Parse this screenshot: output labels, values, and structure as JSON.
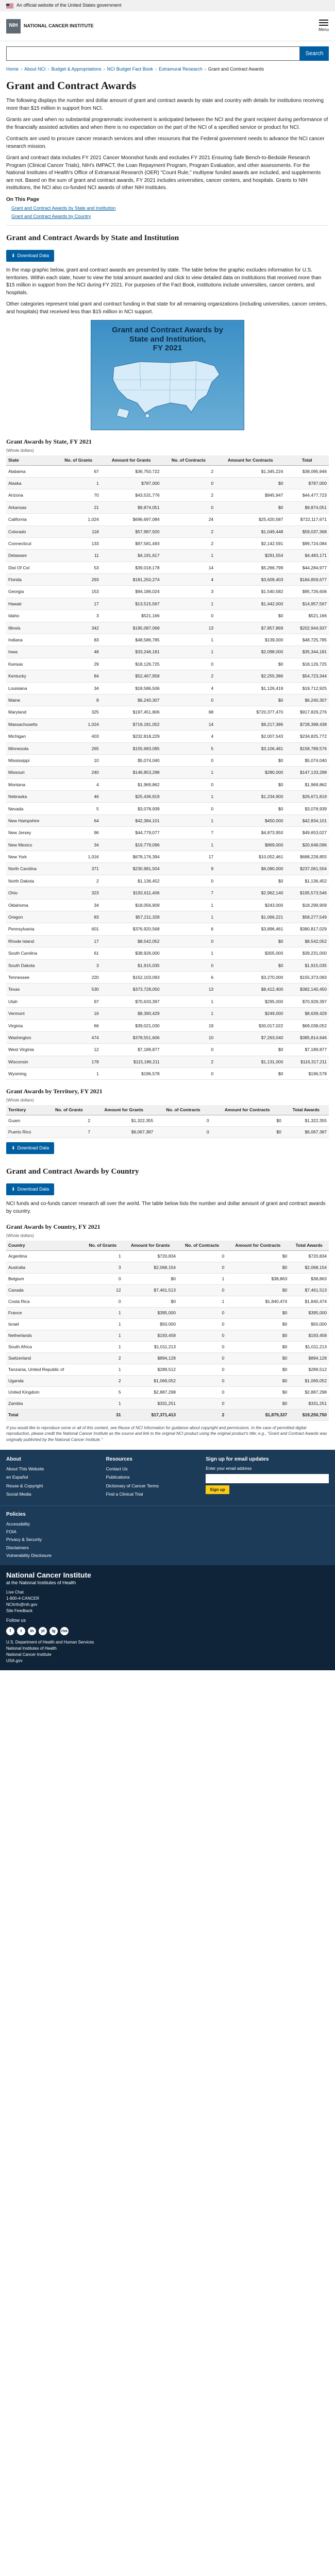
{
  "gov_banner": {
    "text": "An official website of the United States government"
  },
  "masthead": {
    "logo_line1": "NATIONAL CANCER INSTITUTE",
    "logo_line2": "NIH",
    "menu_label": "Menu"
  },
  "search": {
    "placeholder": "",
    "button_label": "Search"
  },
  "breadcrumb": [
    "Home",
    "About NCI",
    "Budget & Appropriations",
    "NCI Budget Fact Book",
    "Extramural Research",
    "Grant and Contract Awards"
  ],
  "page": {
    "title": "Grant and Contract Awards",
    "intro_paragraphs": [
      "The following displays the number and dollar amount of grant and contract awards by state and country with details for institutions receiving more than $15 million in support from NCI.",
      "Grants are used when no substantial programmatic involvement is anticipated between the NCI and the grant recipient during performance of the financially assisted activities and when there is no expectation on the part of the NCI of a specified service or product for NCI.",
      "Contracts are used to procure cancer research services and other resources that the Federal government needs to advance the NCI cancer research mission.",
      "Grant and contract data includes FY 2021 Cancer Moonshot funds and excludes FY 2021 Ensuring Safe Bench-to-Bedside Research Program (Clinical Cancer Trials), NIH's IMPACT, the Loan Repayment Program, Program Evaluation, and other assessments. For the National Institutes of Health's Office of Extramural Research (OER) \"Count Rule,\" multiyear funded awards are included, and supplements are not. Based on the sum of grant and contract awards, FY 2021 includes universities, cancer centers, and hospitals. Grants to NIH institutions, the NCI also co-funded NCI awards of other NIH Institutes."
    ],
    "on_this_page_title": "On This Page",
    "on_this_page_links": [
      "Grant and Contract Awards by State and Institution",
      "Grant and Contract Awards by Country"
    ],
    "section1_title": "Grant and Contract Awards by State and Institution",
    "download_label": "Download Data",
    "section1_text": "In the map graphic below, grant and contract awards are presented by state. The table below the graphic excludes information for U.S. territories. Within each state, hover to view the total amount awarded and click to view detailed data on institutions that received more than $15 million in support from the NCI during FY 2021. For purposes of the Fact Book, institutions include universities, cancer centers, and hospitals.",
    "section1_text2": "Other categories represent total grant and contract funding in that state for all remaining organizations (including universities, cancer centers, and hospitals) that received less than $15 million in NCI support.",
    "map_title_line1": "Grant and Contract Awards by",
    "map_title_line2": "State and Institution,",
    "map_title_line3": "FY 2021"
  },
  "state_table": {
    "title": "Grant Awards by State, FY 2021",
    "note": "(Whole dollars)",
    "headers": [
      "State",
      "No. of Grants",
      "Amount for Grants",
      "No. of Contracts",
      "Amount for Contracts",
      "Total"
    ],
    "rows": [
      [
        "Alabama",
        "67",
        "$36,750,722",
        "2",
        "$1,345,224",
        "$38,095,946"
      ],
      [
        "Alaska",
        "1",
        "$787,000",
        "0",
        "$0",
        "$787,000"
      ],
      [
        "Arizona",
        "70",
        "$43,531,776",
        "2",
        "$945,947",
        "$44,477,723"
      ],
      [
        "Arkansas",
        "21",
        "$9,874,051",
        "0",
        "$0",
        "$9,874,051"
      ],
      [
        "California",
        "1,024",
        "$696,697,084",
        "24",
        "$25,420,587",
        "$722,117,671"
      ],
      [
        "Colorado",
        "118",
        "$57,987,920",
        "2",
        "$1,049,448",
        "$59,037,368"
      ],
      [
        "Connecticut",
        "133",
        "$97,581,493",
        "2",
        "$2,142,591",
        "$99,724,084"
      ],
      [
        "Delaware",
        "11",
        "$4,191,617",
        "1",
        "$291,554",
        "$4,483,171"
      ],
      [
        "Dist Of Col",
        "53",
        "$39,018,178",
        "14",
        "$5,266,799",
        "$44,284,977"
      ],
      [
        "Florida",
        "293",
        "$181,250,274",
        "4",
        "$3,609,403",
        "$184,859,677"
      ],
      [
        "Georgia",
        "153",
        "$94,186,024",
        "3",
        "$1,540,582",
        "$95,726,606"
      ],
      [
        "Hawaii",
        "17",
        "$13,515,567",
        "1",
        "$1,442,000",
        "$14,957,567"
      ],
      [
        "Idaho",
        "3",
        "$521,166",
        "0",
        "$0",
        "$521,166"
      ],
      [
        "Illinois",
        "342",
        "$195,087,068",
        "13",
        "$7,857,869",
        "$202,944,937"
      ],
      [
        "Indiana",
        "83",
        "$48,586,785",
        "1",
        "$139,000",
        "$48,725,785"
      ],
      [
        "Iowa",
        "48",
        "$33,246,181",
        "1",
        "$2,098,000",
        "$35,344,181"
      ],
      [
        "Kansas",
        "29",
        "$18,126,725",
        "0",
        "$0",
        "$18,126,725"
      ],
      [
        "Kentucky",
        "84",
        "$52,467,958",
        "2",
        "$2,255,386",
        "$54,723,344"
      ],
      [
        "Louisiana",
        "34",
        "$18,586,506",
        "4",
        "$1,126,419",
        "$19,712,925"
      ],
      [
        "Maine",
        "8",
        "$6,240,307",
        "0",
        "$0",
        "$6,240,307"
      ],
      [
        "Maryland",
        "325",
        "$197,451,806",
        "68",
        "$720,377,470",
        "$917,829,276"
      ],
      [
        "Massachusetts",
        "1,024",
        "$719,181,052",
        "14",
        "$9,217,386",
        "$728,398,438"
      ],
      [
        "Michigan",
        "403",
        "$232,818,229",
        "4",
        "$2,007,543",
        "$234,825,772"
      ],
      [
        "Minnesota",
        "265",
        "$155,683,095",
        "5",
        "$3,106,481",
        "$158,789,576"
      ],
      [
        "Mississippi",
        "10",
        "$5,074,040",
        "0",
        "$0",
        "$5,074,040"
      ],
      [
        "Missouri",
        "240",
        "$146,853,298",
        "1",
        "$280,000",
        "$147,133,298"
      ],
      [
        "Montana",
        "4",
        "$1,969,862",
        "0",
        "$0",
        "$1,969,862"
      ],
      [
        "Nebraska",
        "46",
        "$25,436,919",
        "1",
        "$1,234,900",
        "$26,671,819"
      ],
      [
        "Nevada",
        "5",
        "$3,078,939",
        "0",
        "$0",
        "$3,078,939"
      ],
      [
        "New Hampshire",
        "64",
        "$42,384,101",
        "1",
        "$450,000",
        "$42,834,101"
      ],
      [
        "New Jersey",
        "96",
        "$44,779,077",
        "7",
        "$4,873,950",
        "$49,653,027"
      ],
      [
        "New Mexico",
        "34",
        "$19,779,096",
        "1",
        "$869,000",
        "$20,648,096"
      ],
      [
        "New York",
        "1,016",
        "$678,176,394",
        "17",
        "$10,052,461",
        "$688,228,855"
      ],
      [
        "North Carolina",
        "371",
        "$230,981,504",
        "9",
        "$6,080,000",
        "$237,061,504"
      ],
      [
        "North Dakota",
        "2",
        "$1,136,452",
        "0",
        "$0",
        "$1,136,452"
      ],
      [
        "Ohio",
        "323",
        "$192,611,406",
        "7",
        "$2,962,140",
        "$195,573,546"
      ],
      [
        "Oklahoma",
        "34",
        "$18,056,909",
        "1",
        "$243,000",
        "$18,299,909"
      ],
      [
        "Oregon",
        "83",
        "$57,211,328",
        "1",
        "$1,066,221",
        "$58,277,549"
      ],
      [
        "Pennsylvania",
        "601",
        "$376,920,568",
        "6",
        "$3,896,461",
        "$380,817,029"
      ],
      [
        "Rhode Island",
        "17",
        "$8,542,052",
        "0",
        "$0",
        "$8,542,052"
      ],
      [
        "South Carolina",
        "61",
        "$38,926,000",
        "1",
        "$305,000",
        "$39,231,000"
      ],
      [
        "South Dakota",
        "3",
        "$1,915,035",
        "0",
        "$0",
        "$1,915,035"
      ],
      [
        "Tennessee",
        "220",
        "$152,103,093",
        "6",
        "$3,270,000",
        "$155,373,093"
      ],
      [
        "Texas",
        "530",
        "$373,728,050",
        "13",
        "$8,412,400",
        "$382,140,450"
      ],
      [
        "Utah",
        "97",
        "$70,633,397",
        "1",
        "$295,000",
        "$70,928,397"
      ],
      [
        "Vermont",
        "16",
        "$8,390,429",
        "1",
        "$249,000",
        "$8,639,429"
      ],
      [
        "Virginia",
        "66",
        "$39,021,030",
        "19",
        "$30,017,022",
        "$69,038,052"
      ],
      [
        "Washington",
        "474",
        "$378,551,606",
        "10",
        "$7,263,040",
        "$385,814,646"
      ],
      [
        "West Virginia",
        "12",
        "$7,189,877",
        "0",
        "$0",
        "$7,189,877"
      ],
      [
        "Wisconsin",
        "178",
        "$115,186,211",
        "2",
        "$1,131,000",
        "$116,317,211"
      ],
      [
        "Wyoming",
        "1",
        "$196,578",
        "0",
        "$0",
        "$196,578"
      ]
    ]
  },
  "territory_table": {
    "title": "Grant Awards by Territory, FY 2021",
    "note": "(Whole dollars)",
    "headers": [
      "Territory",
      "No. of Grants",
      "Amount for Grants",
      "No. of Contracts",
      "Amount for Contracts",
      "Total Awards"
    ],
    "rows": [
      [
        "Guam",
        "2",
        "$1,322,355",
        "0",
        "$0",
        "$1,322,355"
      ],
      [
        "Puerto Rico",
        "7",
        "$6,067,387",
        "0",
        "$0",
        "$6,067,387"
      ]
    ]
  },
  "country_section": {
    "title": "Grant and Contract Awards by Country",
    "download_label": "Download Data",
    "text": "NCI funds and co-funds cancer research all over the world. The table below lists the number and dollar amount of grant and contract awards by country.",
    "table_title": "Grant Awards by Country, FY 2021",
    "note": "(Whole dollars)",
    "headers": [
      "Country",
      "No. of Grants",
      "Amount for Grants",
      "No. of Contracts",
      "Amount for Contracts",
      "Total Awards"
    ],
    "rows": [
      [
        "Argentina",
        "1",
        "$720,834",
        "0",
        "$0",
        "$720,834"
      ],
      [
        "Australia",
        "3",
        "$2,068,154",
        "0",
        "$0",
        "$2,068,154"
      ],
      [
        "Belgium",
        "0",
        "$0",
        "1",
        "$38,863",
        "$38,863"
      ],
      [
        "Canada",
        "12",
        "$7,461,513",
        "0",
        "$0",
        "$7,461,513"
      ],
      [
        "Costa Rica",
        "0",
        "$0",
        "1",
        "$1,840,474",
        "$1,840,474"
      ],
      [
        "France",
        "1",
        "$395,000",
        "0",
        "$0",
        "$395,000"
      ],
      [
        "Israel",
        "1",
        "$50,000",
        "0",
        "$0",
        "$50,000"
      ],
      [
        "Netherlands",
        "1",
        "$193,458",
        "0",
        "$0",
        "$193,458"
      ],
      [
        "South Africa",
        "1",
        "$1,011,213",
        "0",
        "$0",
        "$1,011,213"
      ],
      [
        "Switzerland",
        "2",
        "$894,128",
        "0",
        "$0",
        "$894,128"
      ],
      [
        "Tanzania, United Republic of",
        "1",
        "$289,512",
        "0",
        "$0",
        "$289,512"
      ],
      [
        "Uganda",
        "2",
        "$1,069,052",
        "0",
        "$0",
        "$1,069,052"
      ],
      [
        "United Kingdom",
        "5",
        "$2,887,298",
        "0",
        "$0",
        "$2,887,298"
      ],
      [
        "Zambia",
        "1",
        "$331,251",
        "0",
        "$0",
        "$331,251"
      ]
    ],
    "total_row": [
      "Total",
      "31",
      "$17,371,413",
      "2",
      "$1,879,337",
      "$19,250,750"
    ]
  },
  "footnote": {
    "text": "If you would like to reproduce some or all of this content, see Reuse of NCI Information for guidance about copyright and permissions. In the case of permitted digital reproduction, please credit the National Cancer Institute as the source and link to the original NCI product using the original product's title; e.g., \"Grant and Contract Awards was originally published by the National Cancer Institute.\"",
    "link_text": "Reuse of NCI Information"
  },
  "footer": {
    "col1_title": "About",
    "col1_links": [
      "About This Website",
      "en Español",
      "Reuse & Copyright",
      "Social Media"
    ],
    "col2_title": "Resources",
    "col2_links": [
      "Contact Us",
      "Publications",
      "Dictionary of Cancer Terms",
      "Find a Clinical Trial"
    ],
    "signup_title": "Sign up for email updates",
    "signup_text": "Enter your email address",
    "signup_button": "Sign up",
    "policies_title": "Policies",
    "policies_links": [
      "Accessibility",
      "FOIA",
      "Privacy & Security",
      "Disclaimers",
      "Vulnerability Disclosure"
    ],
    "nci_name_line1": "National Cancer Institute",
    "nci_name_line2": "at the National Institutes of Health",
    "contact_lines": [
      "Live Chat",
      "1-800-4-CANCER",
      "NCIinfo@nih.gov",
      "Site Feedback"
    ],
    "follow_label": "Follow us",
    "social_icons": [
      "f",
      "t",
      "in",
      "yt",
      "ig",
      "rss"
    ],
    "hhs_lines": [
      "U.S. Department of Health and Human Services",
      "National Institutes of Health",
      "National Cancer Institute",
      "USA.gov"
    ]
  },
  "colors": {
    "link": "#005ea2",
    "footer": "#1c3b58",
    "map_bg": "#3b8fc6"
  }
}
